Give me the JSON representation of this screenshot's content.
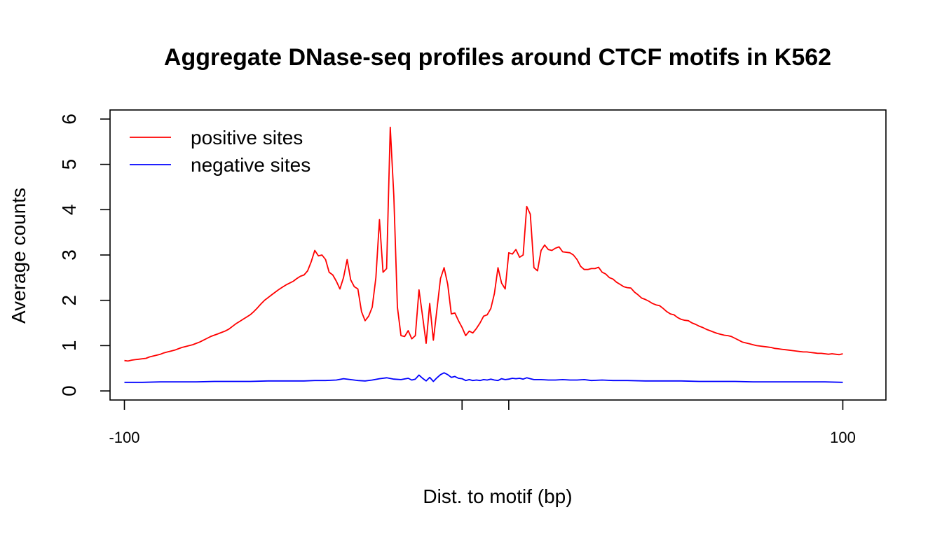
{
  "chart_data": {
    "type": "line",
    "title": "Aggregate DNase-seq profiles around CTCF motifs in K562",
    "xlabel": "Dist. to motif (bp)",
    "ylabel": "Average counts",
    "xlim": [
      -104,
      112
    ],
    "ylim": [
      -0.2,
      6.2
    ],
    "x_tick_values": [
      -100,
      -6,
      7,
      100
    ],
    "x_tick_labels": [
      "-100",
      "",
      "",
      "100"
    ],
    "y_ticks": [
      "0",
      "1",
      "2",
      "3",
      "4",
      "5",
      "6"
    ],
    "legend_position": "top-left",
    "grid": false,
    "series": [
      {
        "name": "positive sites",
        "color": "#ff0000",
        "points": [
          [
            -100,
            0.67
          ],
          [
            -99,
            0.66
          ],
          [
            -98,
            0.68
          ],
          [
            -97,
            0.69
          ],
          [
            -96,
            0.7
          ],
          [
            -95,
            0.71
          ],
          [
            -94,
            0.72
          ],
          [
            -93,
            0.75
          ],
          [
            -92,
            0.77
          ],
          [
            -91,
            0.79
          ],
          [
            -90,
            0.81
          ],
          [
            -89,
            0.84
          ],
          [
            -88,
            0.86
          ],
          [
            -87,
            0.88
          ],
          [
            -86,
            0.9
          ],
          [
            -85,
            0.93
          ],
          [
            -84,
            0.96
          ],
          [
            -83,
            0.98
          ],
          [
            -82,
            1.0
          ],
          [
            -81,
            1.02
          ],
          [
            -80,
            1.05
          ],
          [
            -79,
            1.08
          ],
          [
            -78,
            1.12
          ],
          [
            -77,
            1.16
          ],
          [
            -76,
            1.2
          ],
          [
            -75,
            1.23
          ],
          [
            -74,
            1.26
          ],
          [
            -73,
            1.29
          ],
          [
            -72,
            1.32
          ],
          [
            -71,
            1.36
          ],
          [
            -70,
            1.42
          ],
          [
            -69,
            1.48
          ],
          [
            -68,
            1.53
          ],
          [
            -67,
            1.58
          ],
          [
            -66,
            1.63
          ],
          [
            -65,
            1.68
          ],
          [
            -64,
            1.75
          ],
          [
            -63,
            1.83
          ],
          [
            -62,
            1.92
          ],
          [
            -61,
            2.0
          ],
          [
            -60,
            2.06
          ],
          [
            -59,
            2.12
          ],
          [
            -58,
            2.18
          ],
          [
            -57,
            2.24
          ],
          [
            -56,
            2.29
          ],
          [
            -55,
            2.34
          ],
          [
            -54,
            2.38
          ],
          [
            -53,
            2.42
          ],
          [
            -52,
            2.48
          ],
          [
            -51,
            2.53
          ],
          [
            -50,
            2.56
          ],
          [
            -49,
            2.65
          ],
          [
            -48,
            2.85
          ],
          [
            -47,
            3.1
          ],
          [
            -46,
            2.98
          ],
          [
            -45,
            3.0
          ],
          [
            -44,
            2.9
          ],
          [
            -43,
            2.62
          ],
          [
            -42,
            2.56
          ],
          [
            -41,
            2.42
          ],
          [
            -40,
            2.25
          ],
          [
            -39,
            2.5
          ],
          [
            -38,
            2.9
          ],
          [
            -37,
            2.45
          ],
          [
            -36,
            2.3
          ],
          [
            -35,
            2.25
          ],
          [
            -34,
            1.75
          ],
          [
            -33,
            1.55
          ],
          [
            -32,
            1.65
          ],
          [
            -31,
            1.85
          ],
          [
            -30,
            2.5
          ],
          [
            -29,
            3.78
          ],
          [
            -28,
            2.62
          ],
          [
            -27,
            2.7
          ],
          [
            -26,
            5.82
          ],
          [
            -25,
            4.3
          ],
          [
            -24,
            1.85
          ],
          [
            -23,
            1.22
          ],
          [
            -22,
            1.2
          ],
          [
            -21,
            1.33
          ],
          [
            -20,
            1.15
          ],
          [
            -19,
            1.22
          ],
          [
            -18,
            2.23
          ],
          [
            -17,
            1.65
          ],
          [
            -16,
            1.05
          ],
          [
            -15,
            1.93
          ],
          [
            -14,
            1.12
          ],
          [
            -13,
            1.8
          ],
          [
            -12,
            2.48
          ],
          [
            -11,
            2.72
          ],
          [
            -10,
            2.35
          ],
          [
            -9,
            1.7
          ],
          [
            -8,
            1.72
          ],
          [
            -7,
            1.55
          ],
          [
            -6,
            1.4
          ],
          [
            -5,
            1.22
          ],
          [
            -4,
            1.32
          ],
          [
            -3,
            1.28
          ],
          [
            -2,
            1.38
          ],
          [
            -1,
            1.5
          ],
          [
            0,
            1.65
          ],
          [
            1,
            1.68
          ],
          [
            2,
            1.82
          ],
          [
            3,
            2.15
          ],
          [
            4,
            2.72
          ],
          [
            5,
            2.38
          ],
          [
            6,
            2.25
          ],
          [
            7,
            3.05
          ],
          [
            8,
            3.02
          ],
          [
            9,
            3.12
          ],
          [
            10,
            2.95
          ],
          [
            11,
            3.0
          ],
          [
            12,
            4.07
          ],
          [
            13,
            3.9
          ],
          [
            14,
            2.72
          ],
          [
            15,
            2.65
          ],
          [
            16,
            3.1
          ],
          [
            17,
            3.22
          ],
          [
            18,
            3.12
          ],
          [
            19,
            3.1
          ],
          [
            20,
            3.15
          ],
          [
            21,
            3.18
          ],
          [
            22,
            3.07
          ],
          [
            23,
            3.06
          ],
          [
            24,
            3.05
          ],
          [
            25,
            3.0
          ],
          [
            26,
            2.9
          ],
          [
            27,
            2.75
          ],
          [
            28,
            2.68
          ],
          [
            29,
            2.68
          ],
          [
            30,
            2.7
          ],
          [
            31,
            2.7
          ],
          [
            32,
            2.73
          ],
          [
            33,
            2.62
          ],
          [
            34,
            2.58
          ],
          [
            35,
            2.5
          ],
          [
            36,
            2.47
          ],
          [
            37,
            2.4
          ],
          [
            38,
            2.35
          ],
          [
            39,
            2.3
          ],
          [
            40,
            2.28
          ],
          [
            41,
            2.27
          ],
          [
            42,
            2.18
          ],
          [
            43,
            2.12
          ],
          [
            44,
            2.05
          ],
          [
            45,
            2.02
          ],
          [
            46,
            1.98
          ],
          [
            47,
            1.93
          ],
          [
            48,
            1.9
          ],
          [
            49,
            1.88
          ],
          [
            50,
            1.82
          ],
          [
            51,
            1.75
          ],
          [
            52,
            1.7
          ],
          [
            53,
            1.68
          ],
          [
            54,
            1.62
          ],
          [
            55,
            1.58
          ],
          [
            56,
            1.56
          ],
          [
            57,
            1.55
          ],
          [
            58,
            1.5
          ],
          [
            59,
            1.47
          ],
          [
            60,
            1.43
          ],
          [
            61,
            1.4
          ],
          [
            62,
            1.36
          ],
          [
            63,
            1.33
          ],
          [
            64,
            1.3
          ],
          [
            65,
            1.27
          ],
          [
            66,
            1.25
          ],
          [
            67,
            1.23
          ],
          [
            68,
            1.22
          ],
          [
            69,
            1.2
          ],
          [
            70,
            1.16
          ],
          [
            71,
            1.12
          ],
          [
            72,
            1.08
          ],
          [
            73,
            1.06
          ],
          [
            74,
            1.04
          ],
          [
            75,
            1.02
          ],
          [
            76,
            1.0
          ],
          [
            77,
            0.99
          ],
          [
            78,
            0.98
          ],
          [
            79,
            0.97
          ],
          [
            80,
            0.96
          ],
          [
            81,
            0.94
          ],
          [
            82,
            0.93
          ],
          [
            83,
            0.92
          ],
          [
            84,
            0.91
          ],
          [
            85,
            0.9
          ],
          [
            86,
            0.89
          ],
          [
            87,
            0.88
          ],
          [
            88,
            0.87
          ],
          [
            89,
            0.86
          ],
          [
            90,
            0.86
          ],
          [
            91,
            0.85
          ],
          [
            92,
            0.84
          ],
          [
            93,
            0.83
          ],
          [
            94,
            0.83
          ],
          [
            95,
            0.82
          ],
          [
            96,
            0.81
          ],
          [
            97,
            0.82
          ],
          [
            98,
            0.81
          ],
          [
            99,
            0.8
          ],
          [
            100,
            0.82
          ]
        ]
      },
      {
        "name": "negative sites",
        "color": "#0000ff",
        "points": [
          [
            -100,
            0.19
          ],
          [
            -95,
            0.19
          ],
          [
            -90,
            0.2
          ],
          [
            -85,
            0.2
          ],
          [
            -80,
            0.2
          ],
          [
            -75,
            0.21
          ],
          [
            -70,
            0.21
          ],
          [
            -65,
            0.21
          ],
          [
            -60,
            0.22
          ],
          [
            -55,
            0.22
          ],
          [
            -50,
            0.22
          ],
          [
            -47,
            0.23
          ],
          [
            -44,
            0.23
          ],
          [
            -41,
            0.24
          ],
          [
            -39,
            0.27
          ],
          [
            -37,
            0.25
          ],
          [
            -35,
            0.23
          ],
          [
            -33,
            0.22
          ],
          [
            -31,
            0.24
          ],
          [
            -29,
            0.27
          ],
          [
            -27,
            0.29
          ],
          [
            -25,
            0.26
          ],
          [
            -23,
            0.25
          ],
          [
            -21,
            0.28
          ],
          [
            -20,
            0.24
          ],
          [
            -19,
            0.26
          ],
          [
            -18,
            0.35
          ],
          [
            -17,
            0.28
          ],
          [
            -16,
            0.22
          ],
          [
            -15,
            0.3
          ],
          [
            -14,
            0.21
          ],
          [
            -13,
            0.29
          ],
          [
            -12,
            0.36
          ],
          [
            -11,
            0.4
          ],
          [
            -10,
            0.36
          ],
          [
            -9,
            0.3
          ],
          [
            -8,
            0.32
          ],
          [
            -7,
            0.28
          ],
          [
            -6,
            0.27
          ],
          [
            -5,
            0.23
          ],
          [
            -4,
            0.25
          ],
          [
            -3,
            0.23
          ],
          [
            -2,
            0.24
          ],
          [
            -1,
            0.23
          ],
          [
            0,
            0.25
          ],
          [
            1,
            0.24
          ],
          [
            2,
            0.26
          ],
          [
            3,
            0.24
          ],
          [
            4,
            0.23
          ],
          [
            5,
            0.27
          ],
          [
            6,
            0.25
          ],
          [
            7,
            0.26
          ],
          [
            8,
            0.28
          ],
          [
            9,
            0.27
          ],
          [
            10,
            0.28
          ],
          [
            11,
            0.26
          ],
          [
            12,
            0.29
          ],
          [
            13,
            0.27
          ],
          [
            14,
            0.25
          ],
          [
            16,
            0.25
          ],
          [
            18,
            0.24
          ],
          [
            20,
            0.24
          ],
          [
            22,
            0.25
          ],
          [
            24,
            0.24
          ],
          [
            26,
            0.24
          ],
          [
            28,
            0.25
          ],
          [
            30,
            0.23
          ],
          [
            33,
            0.24
          ],
          [
            36,
            0.23
          ],
          [
            40,
            0.23
          ],
          [
            45,
            0.22
          ],
          [
            50,
            0.22
          ],
          [
            55,
            0.22
          ],
          [
            60,
            0.21
          ],
          [
            65,
            0.21
          ],
          [
            70,
            0.21
          ],
          [
            75,
            0.2
          ],
          [
            80,
            0.2
          ],
          [
            85,
            0.2
          ],
          [
            90,
            0.2
          ],
          [
            95,
            0.2
          ],
          [
            100,
            0.19
          ]
        ]
      }
    ]
  }
}
